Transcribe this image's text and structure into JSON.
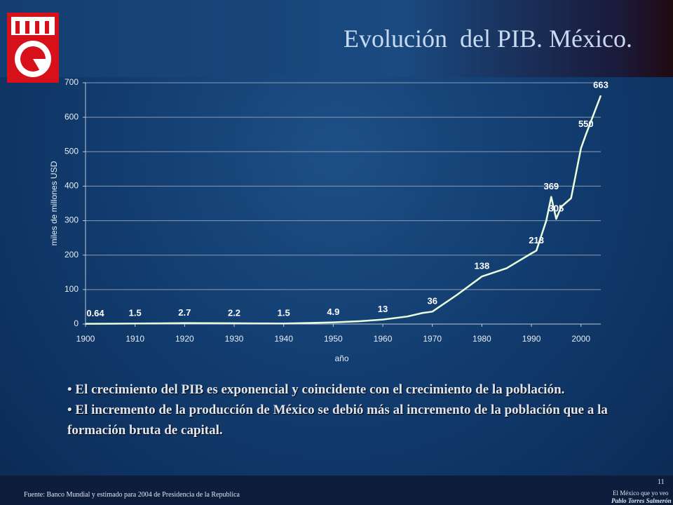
{
  "slide": {
    "title": "Evolución  del PIB. México.",
    "bullets": [
      "El crecimiento del PIB es exponencial y coincidente con el crecimiento de la población.",
      "El incremento de la producción de México se debió más al incremento de la población que a la formación bruta de capital."
    ],
    "source": "Fuente: Banco Mundial y estimado para 2004 de Presidencia de la Republica",
    "page": "11",
    "footer_line1": "El México que yo veo",
    "footer_line2": "Pablo Torres Salmerón"
  },
  "chart_data": {
    "type": "line",
    "xlabel": "año",
    "ylabel": "miles de millones USD",
    "x": [
      1900,
      1905,
      1910,
      1915,
      1920,
      1925,
      1930,
      1935,
      1940,
      1945,
      1950,
      1955,
      1960,
      1965,
      1968,
      1970,
      1975,
      1980,
      1985,
      1990,
      1991,
      1993,
      1994,
      1995,
      1996,
      1998,
      2000,
      2001,
      2004
    ],
    "values": [
      0.64,
      1,
      1.5,
      2,
      2.7,
      2.5,
      2.2,
      1.8,
      1.5,
      3,
      4.9,
      8,
      13,
      22,
      32,
      36,
      85,
      138,
      162,
      205,
      213,
      300,
      369,
      305,
      340,
      365,
      510,
      550,
      663
    ],
    "value_labels": [
      "0.64",
      null,
      "1.5",
      null,
      "2.7",
      null,
      "2.2",
      null,
      "1.5",
      null,
      "4.9",
      null,
      "13",
      null,
      null,
      "36",
      null,
      "138",
      null,
      null,
      "213",
      null,
      "369",
      "305",
      null,
      null,
      null,
      "550",
      "663"
    ],
    "color": "#eaffdf",
    "xlim": [
      1900,
      2004
    ],
    "xticks": [
      1900,
      1910,
      1920,
      1930,
      1940,
      1950,
      1960,
      1970,
      1980,
      1990,
      2000
    ],
    "ylim": [
      0,
      700
    ],
    "yticks": [
      0,
      100,
      200,
      300,
      400,
      500,
      600,
      700
    ],
    "grid": true
  }
}
